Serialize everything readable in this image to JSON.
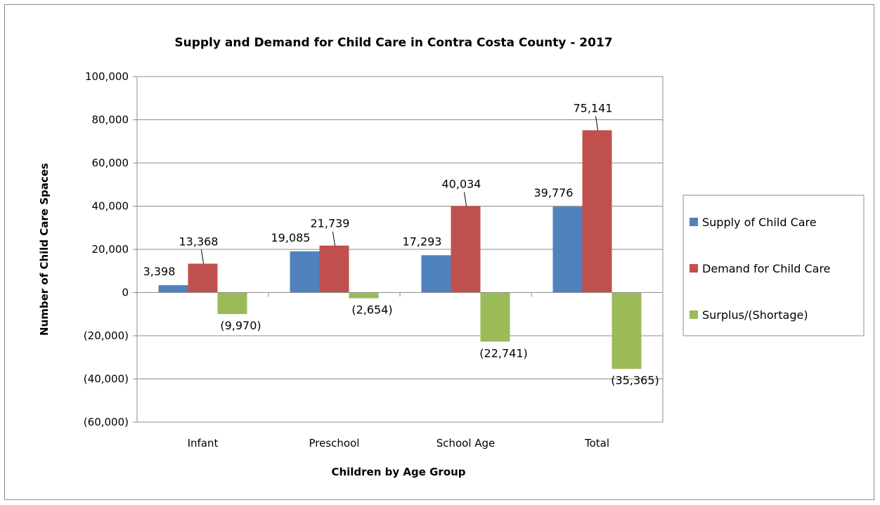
{
  "chart_data": {
    "type": "bar",
    "title": "Supply and Demand for Child Care in Contra Costa County - 2017",
    "xlabel": "Children by Age Group",
    "ylabel": "Number of Child Care Spaces",
    "categories": [
      "Infant",
      "Preschool",
      "School Age",
      "Total"
    ],
    "series": [
      {
        "name": "Supply of Child Care",
        "color": "#4f81bd",
        "values": [
          3398,
          19085,
          17293,
          39776
        ],
        "labels": [
          "3,398",
          "19,085",
          "17,293",
          "39,776"
        ]
      },
      {
        "name": "Demand for Child Care",
        "color": "#c0504d",
        "values": [
          13368,
          21739,
          40034,
          75141
        ],
        "labels": [
          "13,368",
          "21,739",
          "40,034",
          "75,141"
        ]
      },
      {
        "name": "Surplus/(Shortage)",
        "color": "#9bbb59",
        "values": [
          -9970,
          -2654,
          -22741,
          -35365
        ],
        "labels": [
          "(9,970)",
          "(2,654)",
          "(22,741)",
          "(35,365)"
        ]
      }
    ],
    "ylim": [
      -60000,
      100000
    ],
    "yticks": [
      100000,
      80000,
      60000,
      40000,
      20000,
      0,
      -20000,
      -40000,
      -60000
    ],
    "ytick_labels": [
      "100,000",
      "80,000",
      "60,000",
      "40,000",
      "20,000",
      "0",
      "(20,000)",
      "(40,000)",
      "(60,000)"
    ],
    "grid": true,
    "legend": "right"
  }
}
